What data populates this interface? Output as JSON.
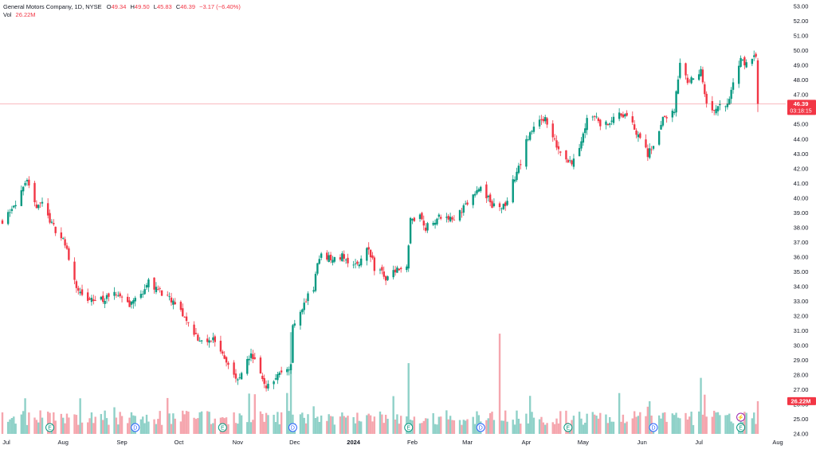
{
  "chart_data": {
    "type": "candlestick",
    "title": "General Motors Company, 1D, NYSE",
    "ohlc_label": {
      "o": "O",
      "h": "H",
      "l": "L",
      "c": "C"
    },
    "last_ohlc": {
      "open": "49.34",
      "high": "49.50",
      "low": "45.83",
      "close": "46.39",
      "change": "−3.17 (−6.40%)"
    },
    "volume_label": "Vol",
    "volume_value": "26.22M",
    "last_price": "46.39",
    "countdown": "03:18:15",
    "y_ticks": [
      "53.00",
      "52.00",
      "51.00",
      "50.00",
      "49.00",
      "48.00",
      "47.00",
      "46.00",
      "45.00",
      "44.00",
      "43.00",
      "42.00",
      "41.00",
      "40.00",
      "39.00",
      "38.00",
      "37.00",
      "36.00",
      "35.00",
      "34.00",
      "33.00",
      "32.00",
      "31.00",
      "30.00",
      "29.00",
      "28.00",
      "27.00",
      "26.00",
      "25.00",
      "24.00"
    ],
    "ylim": [
      24,
      53
    ],
    "x_ticks": [
      "Jul",
      "Aug",
      "Sep",
      "Oct",
      "Nov",
      "Dec",
      "2024",
      "Feb",
      "Mar",
      "Apr",
      "May",
      "Jun",
      "Jul",
      "Aug"
    ],
    "keypoints": [
      [
        "2023-06-30",
        38.5
      ],
      [
        "2023-07-10",
        40.3
      ],
      [
        "2023-07-13",
        41.0
      ],
      [
        "2023-07-17",
        39.5
      ],
      [
        "2023-07-21",
        39.7
      ],
      [
        "2023-07-26",
        38.2
      ],
      [
        "2023-08-01",
        37.2
      ],
      [
        "2023-08-04",
        36.0
      ],
      [
        "2023-08-08",
        34.0
      ],
      [
        "2023-08-12",
        33.0
      ],
      [
        "2023-08-18",
        33.1
      ],
      [
        "2023-08-25",
        33.2
      ],
      [
        "2023-08-30",
        33.5
      ],
      [
        "2023-09-05",
        32.8
      ],
      [
        "2023-09-11",
        33.5
      ],
      [
        "2023-09-15",
        34.3
      ],
      [
        "2023-09-20",
        33.8
      ],
      [
        "2023-09-25",
        33.2
      ],
      [
        "2023-10-01",
        32.5
      ],
      [
        "2023-10-06",
        31.5
      ],
      [
        "2023-10-11",
        30.5
      ],
      [
        "2023-10-15",
        30.0
      ],
      [
        "2023-10-19",
        30.5
      ],
      [
        "2023-10-24",
        29.5
      ],
      [
        "2023-10-28",
        28.5
      ],
      [
        "2023-11-01",
        27.5
      ],
      [
        "2023-11-04",
        28.3
      ],
      [
        "2023-11-08",
        29.5
      ],
      [
        "2023-11-12",
        28.5
      ],
      [
        "2023-11-15",
        27.2
      ],
      [
        "2023-11-18",
        27.5
      ],
      [
        "2023-11-22",
        27.9
      ],
      [
        "2023-11-26",
        28.4
      ],
      [
        "2023-11-29",
        28.6
      ],
      [
        "2023-11-30",
        31.4
      ],
      [
        "2023-12-04",
        32.4
      ],
      [
        "2023-12-08",
        33.3
      ],
      [
        "2023-12-11",
        34.0
      ],
      [
        "2023-12-13",
        35.5
      ],
      [
        "2023-12-15",
        36.2
      ],
      [
        "2023-12-18",
        36.0
      ],
      [
        "2023-12-21",
        35.8
      ],
      [
        "2023-12-26",
        36.1
      ],
      [
        "2023-12-29",
        35.8
      ],
      [
        "2024-01-04",
        35.5
      ],
      [
        "2024-01-08",
        36.5
      ],
      [
        "2024-01-10",
        36.2
      ],
      [
        "2024-01-12",
        35.2
      ],
      [
        "2024-01-15",
        35.0
      ],
      [
        "2024-01-18",
        34.5
      ],
      [
        "2024-01-22",
        35.0
      ],
      [
        "2024-01-25",
        35.3
      ],
      [
        "2024-01-29",
        35.5
      ],
      [
        "2024-01-31",
        38.5
      ],
      [
        "2024-02-05",
        38.8
      ],
      [
        "2024-02-08",
        38.0
      ],
      [
        "2024-02-13",
        38.5
      ],
      [
        "2024-02-16",
        38.8
      ],
      [
        "2024-02-21",
        38.6
      ],
      [
        "2024-02-26",
        39.0
      ],
      [
        "2024-03-01",
        39.6
      ],
      [
        "2024-03-05",
        40.5
      ],
      [
        "2024-03-08",
        41.0
      ],
      [
        "2024-03-11",
        40.2
      ],
      [
        "2024-03-14",
        39.5
      ],
      [
        "2024-03-18",
        39.3
      ],
      [
        "2024-03-21",
        39.5
      ],
      [
        "2024-03-24",
        40.8
      ],
      [
        "2024-03-28",
        42.0
      ],
      [
        "2024-04-01",
        43.8
      ],
      [
        "2024-04-04",
        44.5
      ],
      [
        "2024-04-08",
        45.5
      ],
      [
        "2024-04-11",
        45.3
      ],
      [
        "2024-04-15",
        44.0
      ],
      [
        "2024-04-19",
        43.2
      ],
      [
        "2024-04-23",
        42.6
      ],
      [
        "2024-04-27",
        42.4
      ],
      [
        "2024-04-30",
        44.0
      ],
      [
        "2024-05-03",
        45.3
      ],
      [
        "2024-05-07",
        45.7
      ],
      [
        "2024-05-10",
        44.9
      ],
      [
        "2024-05-15",
        45.1
      ],
      [
        "2024-05-20",
        45.6
      ],
      [
        "2024-05-24",
        45.8
      ],
      [
        "2024-05-28",
        44.6
      ],
      [
        "2024-06-01",
        44.0
      ],
      [
        "2024-06-04",
        42.9
      ],
      [
        "2024-06-08",
        44.0
      ],
      [
        "2024-06-12",
        45.3
      ],
      [
        "2024-06-15",
        45.7
      ],
      [
        "2024-06-18",
        46.0
      ],
      [
        "2024-06-21",
        49.0
      ],
      [
        "2024-06-25",
        48.0
      ],
      [
        "2024-06-28",
        48.0
      ],
      [
        "2024-07-02",
        48.5
      ],
      [
        "2024-07-05",
        46.2
      ],
      [
        "2024-07-08",
        45.8
      ],
      [
        "2024-07-12",
        46.5
      ],
      [
        "2024-07-16",
        46.3
      ],
      [
        "2024-07-19",
        47.8
      ],
      [
        "2024-07-23",
        49.6
      ],
      [
        "2024-07-26",
        49.0
      ],
      [
        "2024-07-29",
        49.6
      ],
      [
        "2024-08-01",
        49.34
      ]
    ],
    "volume_spikes": [
      [
        "2023-11-29",
        30.9
      ],
      [
        "2024-01-30",
        28.8
      ],
      [
        "2024-03-18",
        30.8
      ],
      [
        "2024-07-02",
        27.8
      ]
    ],
    "event_markers": [
      {
        "date": "2023-07-25",
        "label": "E",
        "kind": "earnings"
      },
      {
        "date": "2023-09-08",
        "label": "D",
        "kind": "dividend"
      },
      {
        "date": "2023-10-24",
        "label": "E",
        "kind": "earnings"
      },
      {
        "date": "2023-11-30",
        "label": "D",
        "kind": "dividend"
      },
      {
        "date": "2024-01-30",
        "label": "E",
        "kind": "earnings"
      },
      {
        "date": "2024-03-08",
        "label": "D",
        "kind": "dividend"
      },
      {
        "date": "2024-04-23",
        "label": "E",
        "kind": "earnings"
      },
      {
        "date": "2024-06-07",
        "label": "D",
        "kind": "dividend"
      },
      {
        "date": "2024-07-23",
        "label": "E",
        "kind": "earnings"
      },
      {
        "date": "2024-07-23",
        "label": "⚡",
        "kind": "split"
      }
    ],
    "colors": {
      "up": "#089981",
      "down": "#f23645",
      "up_volume": "#8fd1c8",
      "down_volume": "#f5a6ae",
      "axis_text": "#131722",
      "line": "#f23645"
    }
  }
}
